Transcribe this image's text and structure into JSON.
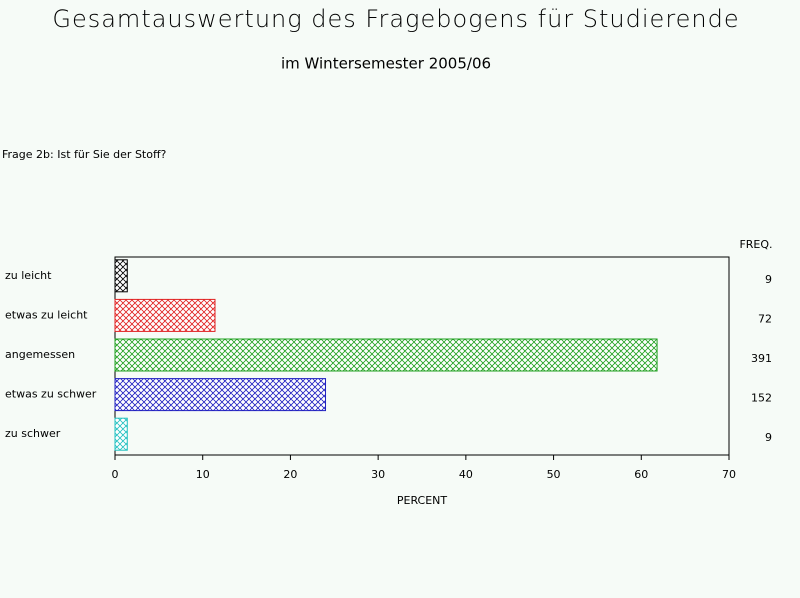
{
  "chart_data": {
    "type": "hbar",
    "title": "Gesamtauswertung des Fragebogens für Studierende",
    "subtitle": "im Wintersemester 2005/06",
    "question": "Frage 2b: Ist für Sie der Stoff?",
    "categories": [
      "zu leicht",
      "etwas zu leicht",
      "angemessen",
      "etwas zu schwer",
      "zu schwer"
    ],
    "values": [
      1.4,
      11.4,
      61.8,
      24.0,
      1.4
    ],
    "colors": [
      "#000000",
      "#e02020",
      "#20a020",
      "#2020c0",
      "#20c0c0"
    ],
    "freq_label": "FREQ.",
    "freq": [
      9,
      72,
      391,
      152,
      9
    ],
    "xlabel": "PERCENT",
    "xlim": [
      0,
      70
    ],
    "xticks": [
      0,
      10,
      20,
      30,
      40,
      50,
      60,
      70
    ],
    "pattern": "crosshatch"
  }
}
